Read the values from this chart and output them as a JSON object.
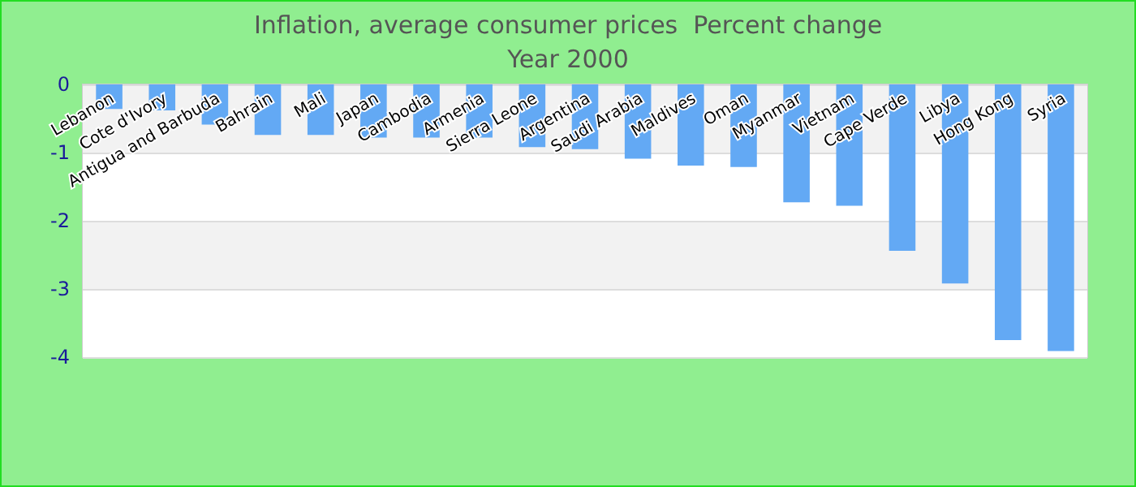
{
  "chart_data": {
    "type": "bar",
    "title": "Inflation, average consumer prices  Percent change",
    "subtitle": "Year 2000",
    "categories": [
      "Lebanon",
      "Cote d'Ivory",
      "Antigua and Barbuda",
      "Bahrain",
      "Mali",
      "Japan",
      "Cambodia",
      "Armenia",
      "Sierra Leone",
      "Argentina",
      "Saudi Arabia",
      "Maldives",
      "Oman",
      "Myanmar",
      "Vietnam",
      "Cape Verde",
      "Libya",
      "Hong Kong",
      "Syria"
    ],
    "values": [
      -0.36,
      -0.38,
      -0.59,
      -0.74,
      -0.74,
      -0.78,
      -0.78,
      -0.78,
      -0.92,
      -0.95,
      -1.09,
      -1.19,
      -1.21,
      -1.73,
      -1.78,
      -2.44,
      -2.92,
      -3.75,
      -3.91
    ],
    "color": "#63a9f4",
    "ylim": [
      -4,
      0
    ],
    "yticks": [
      -4,
      -3,
      -2,
      -1,
      0
    ],
    "grid": true
  }
}
